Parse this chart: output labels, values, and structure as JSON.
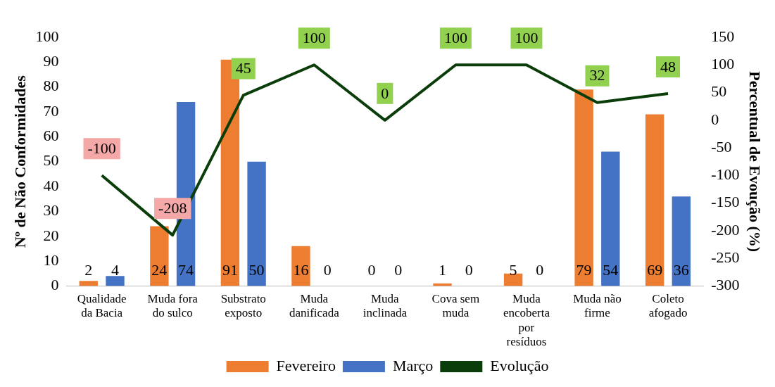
{
  "chart_data": {
    "type": "bar",
    "ylabel": "Nº de Não Conformidades",
    "y2label": "Percentual de Evoução (%)",
    "categories": [
      "Qualidade da Bacia",
      "Muda fora do sulco",
      "Substrato exposto",
      "Muda danificada",
      "Muda inclinada",
      "Cova sem muda",
      "Muda encoberta por resíduos",
      "Muda não firme",
      "Coleto afogado"
    ],
    "series": [
      {
        "name": "Fevereiro",
        "color": "#ed7d31",
        "values": [
          2,
          24,
          91,
          16,
          0,
          1,
          5,
          79,
          69
        ]
      },
      {
        "name": "Março",
        "color": "#4472c4",
        "values": [
          4,
          74,
          50,
          0,
          0,
          0,
          0,
          54,
          36
        ]
      },
      {
        "name": "Evolução",
        "type": "line",
        "axis": "y2",
        "color": "#0a3d0a",
        "values": [
          -100,
          -208,
          45,
          100,
          0,
          100,
          100,
          32,
          48
        ]
      }
    ],
    "ylim": [
      0,
      100
    ],
    "yticks": [
      0,
      10,
      20,
      30,
      40,
      50,
      60,
      70,
      80,
      90,
      100
    ],
    "y2lim": [
      -300,
      150
    ],
    "y2ticks": [
      -300,
      -250,
      -200,
      -150,
      -100,
      -50,
      0,
      50,
      100,
      150
    ],
    "grid": false,
    "legend": "bottom",
    "data_labels": true,
    "marker": "none"
  }
}
